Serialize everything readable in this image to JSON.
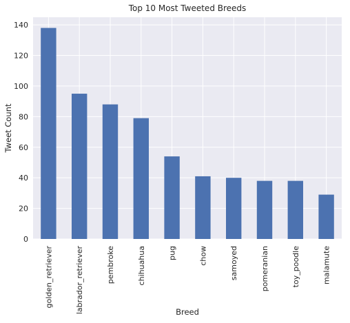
{
  "chart_data": {
    "type": "bar",
    "title": "Top 10 Most Tweeted Breeds",
    "xlabel": "Breed",
    "ylabel": "Tweet Count",
    "categories": [
      "golden_retriever",
      "labrador_retriever",
      "pembroke",
      "chihuahua",
      "pug",
      "chow",
      "samoyed",
      "pomeranian",
      "toy_poodle",
      "malamute"
    ],
    "values": [
      138,
      95,
      88,
      79,
      54,
      41,
      40,
      38,
      38,
      29
    ],
    "ylim": [
      0,
      145
    ],
    "yticks": [
      0,
      20,
      40,
      60,
      80,
      100,
      120,
      140
    ],
    "grid": true,
    "colors": {
      "bar": "#4c72b0",
      "plot_background": "#eaeaf2",
      "grid": "#ffffff"
    }
  }
}
